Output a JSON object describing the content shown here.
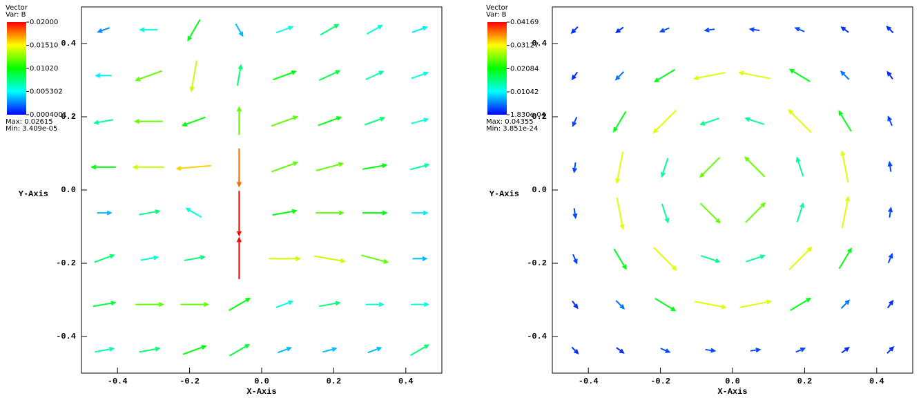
{
  "chart_data": [
    {
      "type": "quiver",
      "legend_title": "Vector",
      "variable": "Var: B",
      "max_label": "Max: 0.02615",
      "min_label": "Min: 3.409e-05",
      "colorbar_ticks": [
        {
          "value": 0.02,
          "label": "0.02000"
        },
        {
          "value": 0.0151,
          "label": "0.01510"
        },
        {
          "value": 0.0102,
          "label": "0.01020"
        },
        0.005302,
        {
          "value": 0.0004001,
          "label": "0.0004001"
        }
      ],
      "xlabel": "X-Axis",
      "ylabel": "Y-Axis",
      "xlim": [
        -0.5,
        0.5
      ],
      "ylim": [
        -0.5,
        0.5
      ],
      "xticks": [
        -0.4,
        -0.2,
        {
          "value": 0,
          "label": "0.0"
        },
        0.2,
        0.4
      ],
      "yticks": [
        -0.4,
        -0.2,
        {
          "value": 0,
          "label": "0.0"
        },
        0.2,
        0.4
      ],
      "x": [
        -0.4375,
        -0.3125,
        -0.1875,
        -0.0625,
        0.0625,
        0.1875,
        0.3125,
        0.4375
      ],
      "y": [
        0.4375,
        0.3125,
        0.1875,
        0.0625,
        -0.0625,
        -0.1875,
        -0.3125,
        -0.4375
      ],
      "magnitude": [
        [
          0.003,
          0.006,
          0.01,
          0.004,
          0.006,
          0.008,
          0.006,
          0.005
        ],
        [
          0.005,
          0.012,
          0.014,
          0.008,
          0.01,
          0.009,
          0.007,
          0.006
        ],
        [
          0.007,
          0.012,
          0.01,
          0.012,
          0.012,
          0.01,
          0.008,
          0.006
        ],
        [
          0.01,
          0.014,
          0.016,
          0.018,
          0.012,
          0.012,
          0.01,
          0.007
        ],
        [
          0.004,
          0.008,
          0.006,
          0.022,
          0.01,
          0.012,
          0.01,
          0.005
        ],
        [
          0.008,
          0.006,
          0.008,
          0.02,
          0.014,
          0.014,
          0.012,
          0.004
        ],
        [
          0.009,
          0.012,
          0.012,
          0.01,
          0.006,
          0.008,
          0.006,
          0.006
        ],
        [
          0.007,
          0.008,
          0.01,
          0.009,
          0.004,
          0.004,
          0.004,
          0.008
        ]
      ],
      "angle": [
        [
          200,
          180,
          240,
          300,
          20,
          30,
          30,
          20
        ],
        [
          180,
          200,
          260,
          80,
          20,
          25,
          25,
          20
        ],
        [
          190,
          180,
          200,
          90,
          20,
          20,
          20,
          15
        ],
        [
          180,
          180,
          185,
          270,
          20,
          15,
          10,
          15
        ],
        [
          0,
          10,
          150,
          270,
          10,
          0,
          0,
          0
        ],
        [
          20,
          10,
          10,
          90,
          0,
          350,
          345,
          0
        ],
        [
          10,
          0,
          0,
          30,
          20,
          10,
          0,
          0
        ],
        [
          10,
          10,
          20,
          30,
          20,
          15,
          20,
          30
        ]
      ]
    },
    {
      "type": "quiver",
      "legend_title": "Vector",
      "variable": "Var: B",
      "max_label": "Max: 0.04355",
      "min_label": "Min: 3.851e-24",
      "colorbar_ticks": [
        0.04169,
        0.03127,
        0.02084,
        0.01042,
        {
          "value": 0.000183,
          "label": "1.830e-04"
        }
      ],
      "xlabel": "X-Axis",
      "ylabel": "Y-Axis",
      "xlim": [
        -0.5,
        0.5
      ],
      "ylim": [
        -0.5,
        0.5
      ],
      "xticks": [
        -0.4,
        -0.2,
        {
          "value": 0,
          "label": "0.0"
        },
        0.2,
        0.4
      ],
      "yticks": [
        -0.4,
        -0.2,
        {
          "value": 0,
          "label": "0.0"
        },
        0.2,
        0.4
      ],
      "x": [
        -0.4375,
        -0.3125,
        -0.1875,
        -0.0625,
        0.0625,
        0.1875,
        0.3125,
        0.4375
      ],
      "y": [
        0.4375,
        0.3125,
        0.1875,
        0.0625,
        -0.0625,
        -0.1875,
        -0.3125,
        -0.4375
      ],
      "magnitude": [
        [
          0.002,
          0.002,
          0.003,
          0.003,
          0.003,
          0.003,
          0.002,
          0.002
        ],
        [
          0.002,
          0.005,
          0.02,
          0.03,
          0.03,
          0.02,
          0.005,
          0.002
        ],
        [
          0.003,
          0.02,
          0.03,
          0.015,
          0.015,
          0.03,
          0.02,
          0.003
        ],
        [
          0.003,
          0.03,
          0.015,
          0.025,
          0.025,
          0.015,
          0.03,
          0.003
        ],
        [
          0.003,
          0.03,
          0.015,
          0.025,
          0.025,
          0.015,
          0.03,
          0.003
        ],
        [
          0.003,
          0.02,
          0.03,
          0.015,
          0.015,
          0.03,
          0.02,
          0.003
        ],
        [
          0.002,
          0.005,
          0.02,
          0.03,
          0.03,
          0.02,
          0.005,
          0.002
        ],
        [
          0.002,
          0.002,
          0.003,
          0.003,
          0.003,
          0.003,
          0.002,
          0.002
        ]
      ],
      "angle": [
        [
          225,
          216,
          203,
          188,
          172,
          157,
          144,
          135
        ],
        [
          234,
          225,
          211,
          191,
          169,
          149,
          135,
          126
        ],
        [
          247,
          239,
          225,
          198,
          162,
          135,
          121,
          113
        ],
        [
          262,
          259,
          252,
          225,
          135,
          108,
          101,
          98
        ],
        [
          278,
          281,
          288,
          315,
          45,
          72,
          79,
          82
        ],
        [
          293,
          301,
          315,
          342,
          18,
          45,
          59,
          67
        ],
        [
          306,
          315,
          329,
          349,
          11,
          31,
          45,
          54
        ],
        [
          315,
          324,
          337,
          352,
          8,
          23,
          36,
          45
        ]
      ]
    }
  ]
}
